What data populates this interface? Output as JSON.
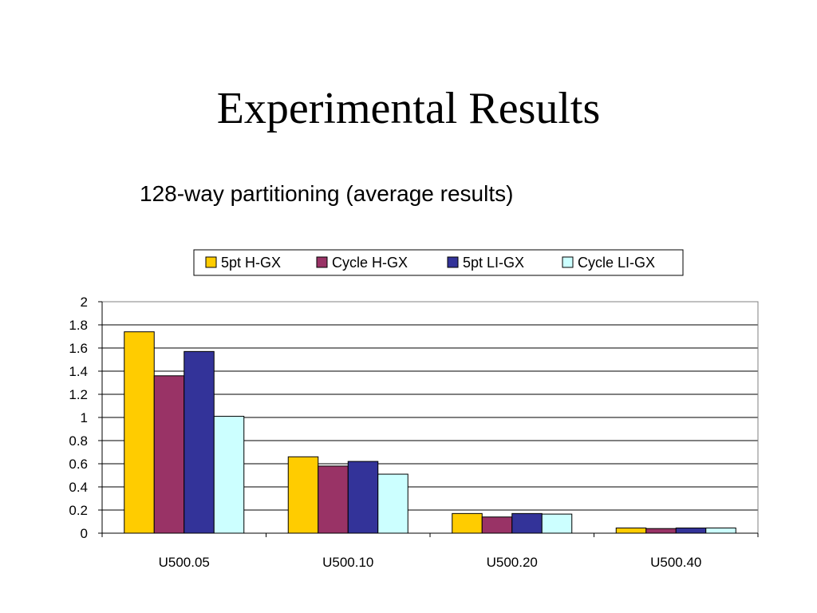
{
  "slide": {
    "title": "Experimental Results",
    "subtitle": "128-way partitioning (average results)"
  },
  "colors": {
    "series": [
      "#ffcc00",
      "#993366",
      "#333399",
      "#ccffff"
    ],
    "gridline": "#000000",
    "axis": "#808080",
    "bar_stroke": "#000000"
  },
  "chart_data": {
    "type": "bar",
    "title": "",
    "xlabel": "",
    "ylabel": "",
    "categories": [
      "U500.05",
      "U500.10",
      "U500.20",
      "U500.40"
    ],
    "series": [
      {
        "name": "5pt H-GX",
        "values": [
          1.74,
          0.66,
          0.17,
          0.045
        ]
      },
      {
        "name": "Cycle H-GX",
        "values": [
          1.36,
          0.58,
          0.14,
          0.04
        ]
      },
      {
        "name": "5pt LI-GX",
        "values": [
          1.57,
          0.62,
          0.17,
          0.045
        ]
      },
      {
        "name": "Cycle LI-GX",
        "values": [
          1.01,
          0.51,
          0.165,
          0.045
        ]
      }
    ],
    "ylim": [
      0,
      2
    ],
    "yticks": [
      0,
      0.2,
      0.4,
      0.6,
      0.8,
      1,
      1.2,
      1.4,
      1.6,
      1.8,
      2
    ],
    "ytick_labels": [
      "0",
      "0.2",
      "0.4",
      "0.6",
      "0.8",
      "1",
      "1.2",
      "1.4",
      "1.6",
      "1.8",
      "2"
    ],
    "grid": true,
    "legend_position": "top"
  }
}
